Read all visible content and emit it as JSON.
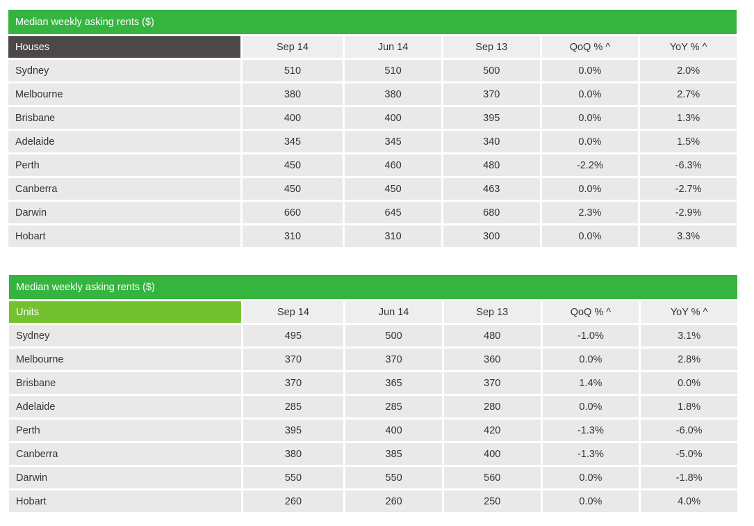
{
  "chart_data": [
    {
      "type": "table",
      "title": "Median weekly asking rents ($)",
      "group_label": "Houses",
      "columns": [
        "Sep 14",
        "Jun 14",
        "Sep 13",
        "QoQ % ^",
        "YoY % ^"
      ],
      "rows": [
        {
          "city": "Sydney",
          "values": [
            "510",
            "510",
            "500",
            "0.0%",
            "2.0%"
          ]
        },
        {
          "city": "Melbourne",
          "values": [
            "380",
            "380",
            "370",
            "0.0%",
            "2.7%"
          ]
        },
        {
          "city": "Brisbane",
          "values": [
            "400",
            "400",
            "395",
            "0.0%",
            "1.3%"
          ]
        },
        {
          "city": "Adelaide",
          "values": [
            "345",
            "345",
            "340",
            "0.0%",
            "1.5%"
          ]
        },
        {
          "city": "Perth",
          "values": [
            "450",
            "460",
            "480",
            "-2.2%",
            "-6.3%"
          ]
        },
        {
          "city": "Canberra",
          "values": [
            "450",
            "450",
            "463",
            "0.0%",
            "-2.7%"
          ]
        },
        {
          "city": "Darwin",
          "values": [
            "660",
            "645",
            "680",
            "2.3%",
            "-2.9%"
          ]
        },
        {
          "city": "Hobart",
          "values": [
            "310",
            "310",
            "300",
            "0.0%",
            "3.3%"
          ]
        }
      ]
    },
    {
      "type": "table",
      "title": "Median weekly asking rents ($)",
      "group_label": "Units",
      "columns": [
        "Sep 14",
        "Jun 14",
        "Sep 13",
        "QoQ % ^",
        "YoY % ^"
      ],
      "rows": [
        {
          "city": "Sydney",
          "values": [
            "495",
            "500",
            "480",
            "-1.0%",
            "3.1%"
          ]
        },
        {
          "city": "Melbourne",
          "values": [
            "370",
            "370",
            "360",
            "0.0%",
            "2.8%"
          ]
        },
        {
          "city": "Brisbane",
          "values": [
            "370",
            "365",
            "370",
            "1.4%",
            "0.0%"
          ]
        },
        {
          "city": "Adelaide",
          "values": [
            "285",
            "285",
            "280",
            "0.0%",
            "1.8%"
          ]
        },
        {
          "city": "Perth",
          "values": [
            "395",
            "400",
            "420",
            "-1.3%",
            "-6.0%"
          ]
        },
        {
          "city": "Canberra",
          "values": [
            "380",
            "385",
            "400",
            "-1.3%",
            "-5.0%"
          ]
        },
        {
          "city": "Darwin",
          "values": [
            "550",
            "550",
            "560",
            "0.0%",
            "-1.8%"
          ]
        },
        {
          "city": "Hobart",
          "values": [
            "260",
            "260",
            "250",
            "0.0%",
            "4.0%"
          ]
        }
      ]
    }
  ],
  "colors": {
    "title_bar": "#35b540",
    "houses_header": "#4c4848",
    "units_header": "#74c12f",
    "cell_background": "#e9e9e9",
    "text": "#333333"
  }
}
